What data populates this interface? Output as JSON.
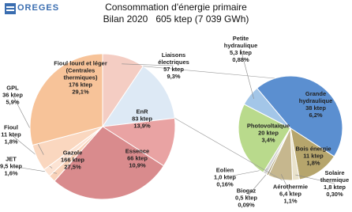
{
  "logo": "OREGES",
  "chart_data": [
    {
      "type": "pie",
      "title": "Consommation d'énergie primaire",
      "subtitle": "Bilan 2020   605 ktep (7 039 GWh)",
      "categories": [
        "Liaisons électriques",
        "EnR",
        "Essence",
        "Gazole",
        "JET",
        "Fioul",
        "GPL",
        "Fioul lourd et léger (Centrales thermiques)"
      ],
      "values": [
        57,
        83,
        66,
        166,
        9.5,
        11,
        36,
        176
      ],
      "value_labels": [
        "57 ktep",
        "83 ktep",
        "66 ktep",
        "166 ktep",
        "9,5 ktep",
        "11 ktep",
        "36 ktep",
        "176 ktep"
      ],
      "percents": [
        9.3,
        13.9,
        10.9,
        27.5,
        1.6,
        1.8,
        5.9,
        29.1
      ],
      "percent_labels": [
        "9,3%",
        "13,9%",
        "10,9%",
        "27,5%",
        "1,6%",
        "1,8%",
        "5,9%",
        "29,1%"
      ],
      "colors": [
        "#f4cdc3",
        "#dde9f5",
        "#e9a3a3",
        "#d98b8d",
        "#f9d3ba",
        "#fce3d3",
        "#fad7bf",
        "#f7c399"
      ]
    },
    {
      "type": "pie",
      "categories": [
        "Grande hydraulique",
        "Bois énergie",
        "Solaire thermique",
        "Aérothermie",
        "Biogaz",
        "Eolien",
        "Photovoltaïque",
        "Petite hydraulique"
      ],
      "values": [
        38,
        11,
        1.8,
        6.4,
        0.5,
        1.0,
        20,
        5.3
      ],
      "value_labels": [
        "38 ktep",
        "11 ktep",
        "1,8 ktep",
        "6,4 ktep",
        "0,5 ktep",
        "1,0 ktep",
        "20 ktep",
        "5,3 ktep"
      ],
      "percents": [
        6.2,
        1.8,
        0.3,
        1.1,
        0.09,
        0.16,
        3.4,
        0.88
      ],
      "percent_labels": [
        "6,2%",
        "1,8%",
        "0,30%",
        "1,1%",
        "0,09%",
        "0,16%",
        "3,4%",
        "0,88%"
      ],
      "colors": [
        "#5b8fd0",
        "#b6a56c",
        "#e9e2cb",
        "#c6b78e",
        "#9e8f5f",
        "#d4d4d4",
        "#b9da8c",
        "#a3c6e8"
      ]
    }
  ]
}
